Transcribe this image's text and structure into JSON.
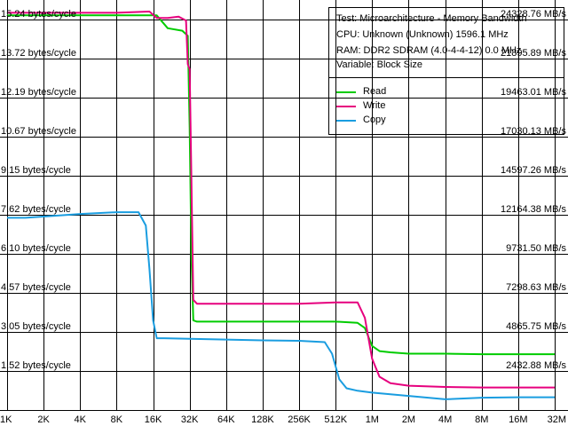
{
  "chart_data": {
    "type": "line",
    "x_scale": "log2",
    "x_ticks": [
      "1K",
      "2K",
      "4K",
      "8K",
      "16K",
      "32K",
      "64K",
      "128K",
      "256K",
      "512K",
      "1M",
      "2M",
      "4M",
      "8M",
      "16M",
      "32M"
    ],
    "y_range": [
      0,
      16.0
    ],
    "y_ticks_left": [
      "1.52 bytes/cycle",
      "3.05 bytes/cycle",
      "4.57 bytes/cycle",
      "6.10 bytes/cycle",
      "7.62 bytes/cycle",
      "9.15 bytes/cycle",
      "10.67 bytes/cycle",
      "12.19 bytes/cycle",
      "13.72 bytes/cycle",
      "15.24 bytes/cycle"
    ],
    "y_ticks_left_values": [
      1.52,
      3.05,
      4.57,
      6.1,
      7.62,
      9.15,
      10.67,
      12.19,
      13.72,
      15.24
    ],
    "y_ticks_right": [
      "2432.88 MB/s",
      "4865.75 MB/s",
      "7298.63 MB/s",
      "9731.50 MB/s",
      "12164.38 MB/s",
      "14597.26 MB/s",
      "17030.13 MB/s",
      "19463.01 MB/s",
      "21895.89 MB/s",
      "24328.76 MB/s"
    ],
    "grid": true,
    "legend_position": "top-right",
    "info": [
      "Test: Microarchitecture - Memory Bandwidth",
      "CPU: Unknown (Unknown) 1596.1 MHz",
      "RAM: DDR2 SDRAM (4.0-4-4-12) 0.0 MHz",
      "Variable: Block Size"
    ],
    "series": [
      {
        "name": "Read",
        "color": "#00cc00",
        "points": [
          [
            0,
            15.4
          ],
          [
            0.5,
            15.4
          ],
          [
            1,
            15.4
          ],
          [
            2,
            15.4
          ],
          [
            3,
            15.4
          ],
          [
            3.9,
            15.4
          ],
          [
            4.1,
            15.4
          ],
          [
            4.4,
            14.9
          ],
          [
            4.8,
            14.8
          ],
          [
            4.95,
            14.6
          ],
          [
            5.0,
            11.0
          ],
          [
            5.05,
            6.0
          ],
          [
            5.1,
            3.5
          ],
          [
            5.2,
            3.45
          ],
          [
            6,
            3.45
          ],
          [
            7,
            3.45
          ],
          [
            8,
            3.45
          ],
          [
            9,
            3.45
          ],
          [
            9.6,
            3.4
          ],
          [
            9.8,
            3.2
          ],
          [
            10,
            2.5
          ],
          [
            10.2,
            2.3
          ],
          [
            10.5,
            2.25
          ],
          [
            11,
            2.2
          ],
          [
            12,
            2.2
          ],
          [
            13,
            2.18
          ],
          [
            14,
            2.18
          ],
          [
            15,
            2.18
          ]
        ]
      },
      {
        "name": "Write",
        "color": "#e6007e",
        "points": [
          [
            0,
            15.5
          ],
          [
            1,
            15.5
          ],
          [
            2,
            15.5
          ],
          [
            3,
            15.5
          ],
          [
            3.9,
            15.55
          ],
          [
            4.1,
            15.3
          ],
          [
            4.4,
            15.3
          ],
          [
            4.7,
            15.35
          ],
          [
            4.9,
            15.2
          ],
          [
            4.95,
            13.5
          ],
          [
            5.0,
            13.3
          ],
          [
            5.1,
            4.3
          ],
          [
            5.2,
            4.15
          ],
          [
            6,
            4.15
          ],
          [
            7,
            4.15
          ],
          [
            8,
            4.15
          ],
          [
            9,
            4.2
          ],
          [
            9.6,
            4.2
          ],
          [
            9.8,
            3.6
          ],
          [
            10,
            2.0
          ],
          [
            10.2,
            1.3
          ],
          [
            10.5,
            1.05
          ],
          [
            11,
            0.95
          ],
          [
            12,
            0.9
          ],
          [
            13,
            0.88
          ],
          [
            14,
            0.88
          ],
          [
            15,
            0.88
          ]
        ]
      },
      {
        "name": "Copy",
        "color": "#1a9de0",
        "points": [
          [
            0,
            7.5
          ],
          [
            0.5,
            7.5
          ],
          [
            1,
            7.55
          ],
          [
            2,
            7.65
          ],
          [
            3,
            7.72
          ],
          [
            3.6,
            7.72
          ],
          [
            3.8,
            7.2
          ],
          [
            3.9,
            5.5
          ],
          [
            4.0,
            3.5
          ],
          [
            4.1,
            2.8
          ],
          [
            4.3,
            2.8
          ],
          [
            5,
            2.78
          ],
          [
            6,
            2.75
          ],
          [
            7,
            2.72
          ],
          [
            8,
            2.7
          ],
          [
            8.7,
            2.65
          ],
          [
            8.9,
            2.2
          ],
          [
            9.1,
            1.2
          ],
          [
            9.3,
            0.85
          ],
          [
            9.6,
            0.75
          ],
          [
            10,
            0.68
          ],
          [
            11,
            0.55
          ],
          [
            12,
            0.42
          ],
          [
            13,
            0.48
          ],
          [
            14,
            0.5
          ],
          [
            15,
            0.5
          ]
        ]
      }
    ]
  }
}
